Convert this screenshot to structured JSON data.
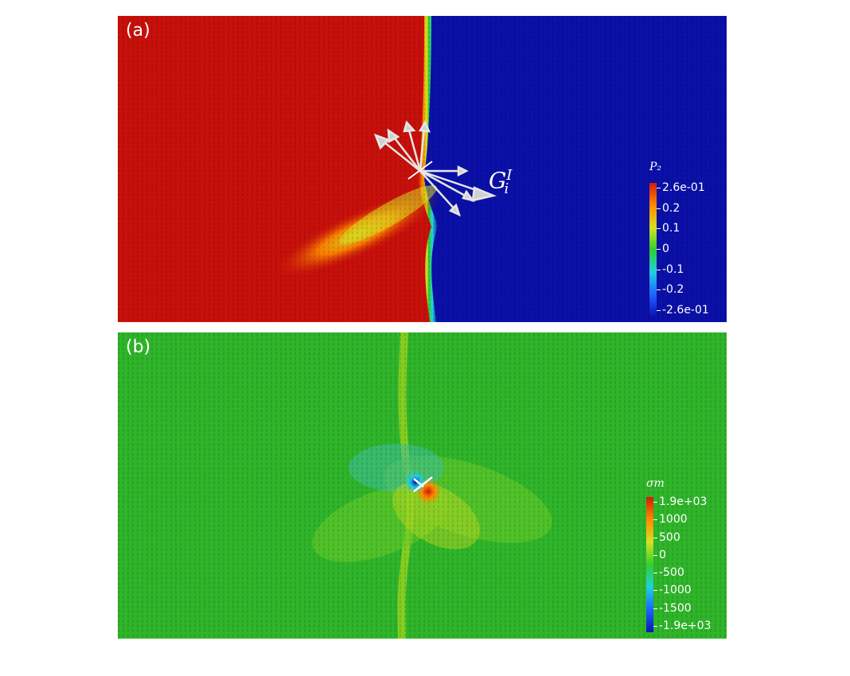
{
  "panel_a": {
    "label": "(a)",
    "colorbar": {
      "title": "P₂",
      "colors": [
        "#0a14b4",
        "#1e64ff",
        "#20d0e0",
        "#30d030",
        "#d8e020",
        "#ff8a00",
        "#d41a0a"
      ],
      "ticks": [
        "2.6e-01",
        "0.2",
        "0.1",
        "0",
        "-0.1",
        "-0.2",
        "-2.6e-01"
      ]
    },
    "arrow_label": {
      "base": "G",
      "sup": "I",
      "sub": "i"
    }
  },
  "panel_b": {
    "label": "(b)",
    "colorbar": {
      "title": "σm",
      "colors": [
        "#0a14b4",
        "#1e64ff",
        "#20d0e0",
        "#30d030",
        "#d8e020",
        "#ff8a00",
        "#d41a0a"
      ],
      "ticks": [
        "1.9e+03",
        "1000",
        "500",
        "0",
        "-500",
        "-1000",
        "-1500",
        "-1.9e+03"
      ]
    }
  },
  "colors": {
    "red_domain": "#c8100a",
    "blue_domain": "#0a10a8",
    "green_field": "#2fb52a"
  }
}
